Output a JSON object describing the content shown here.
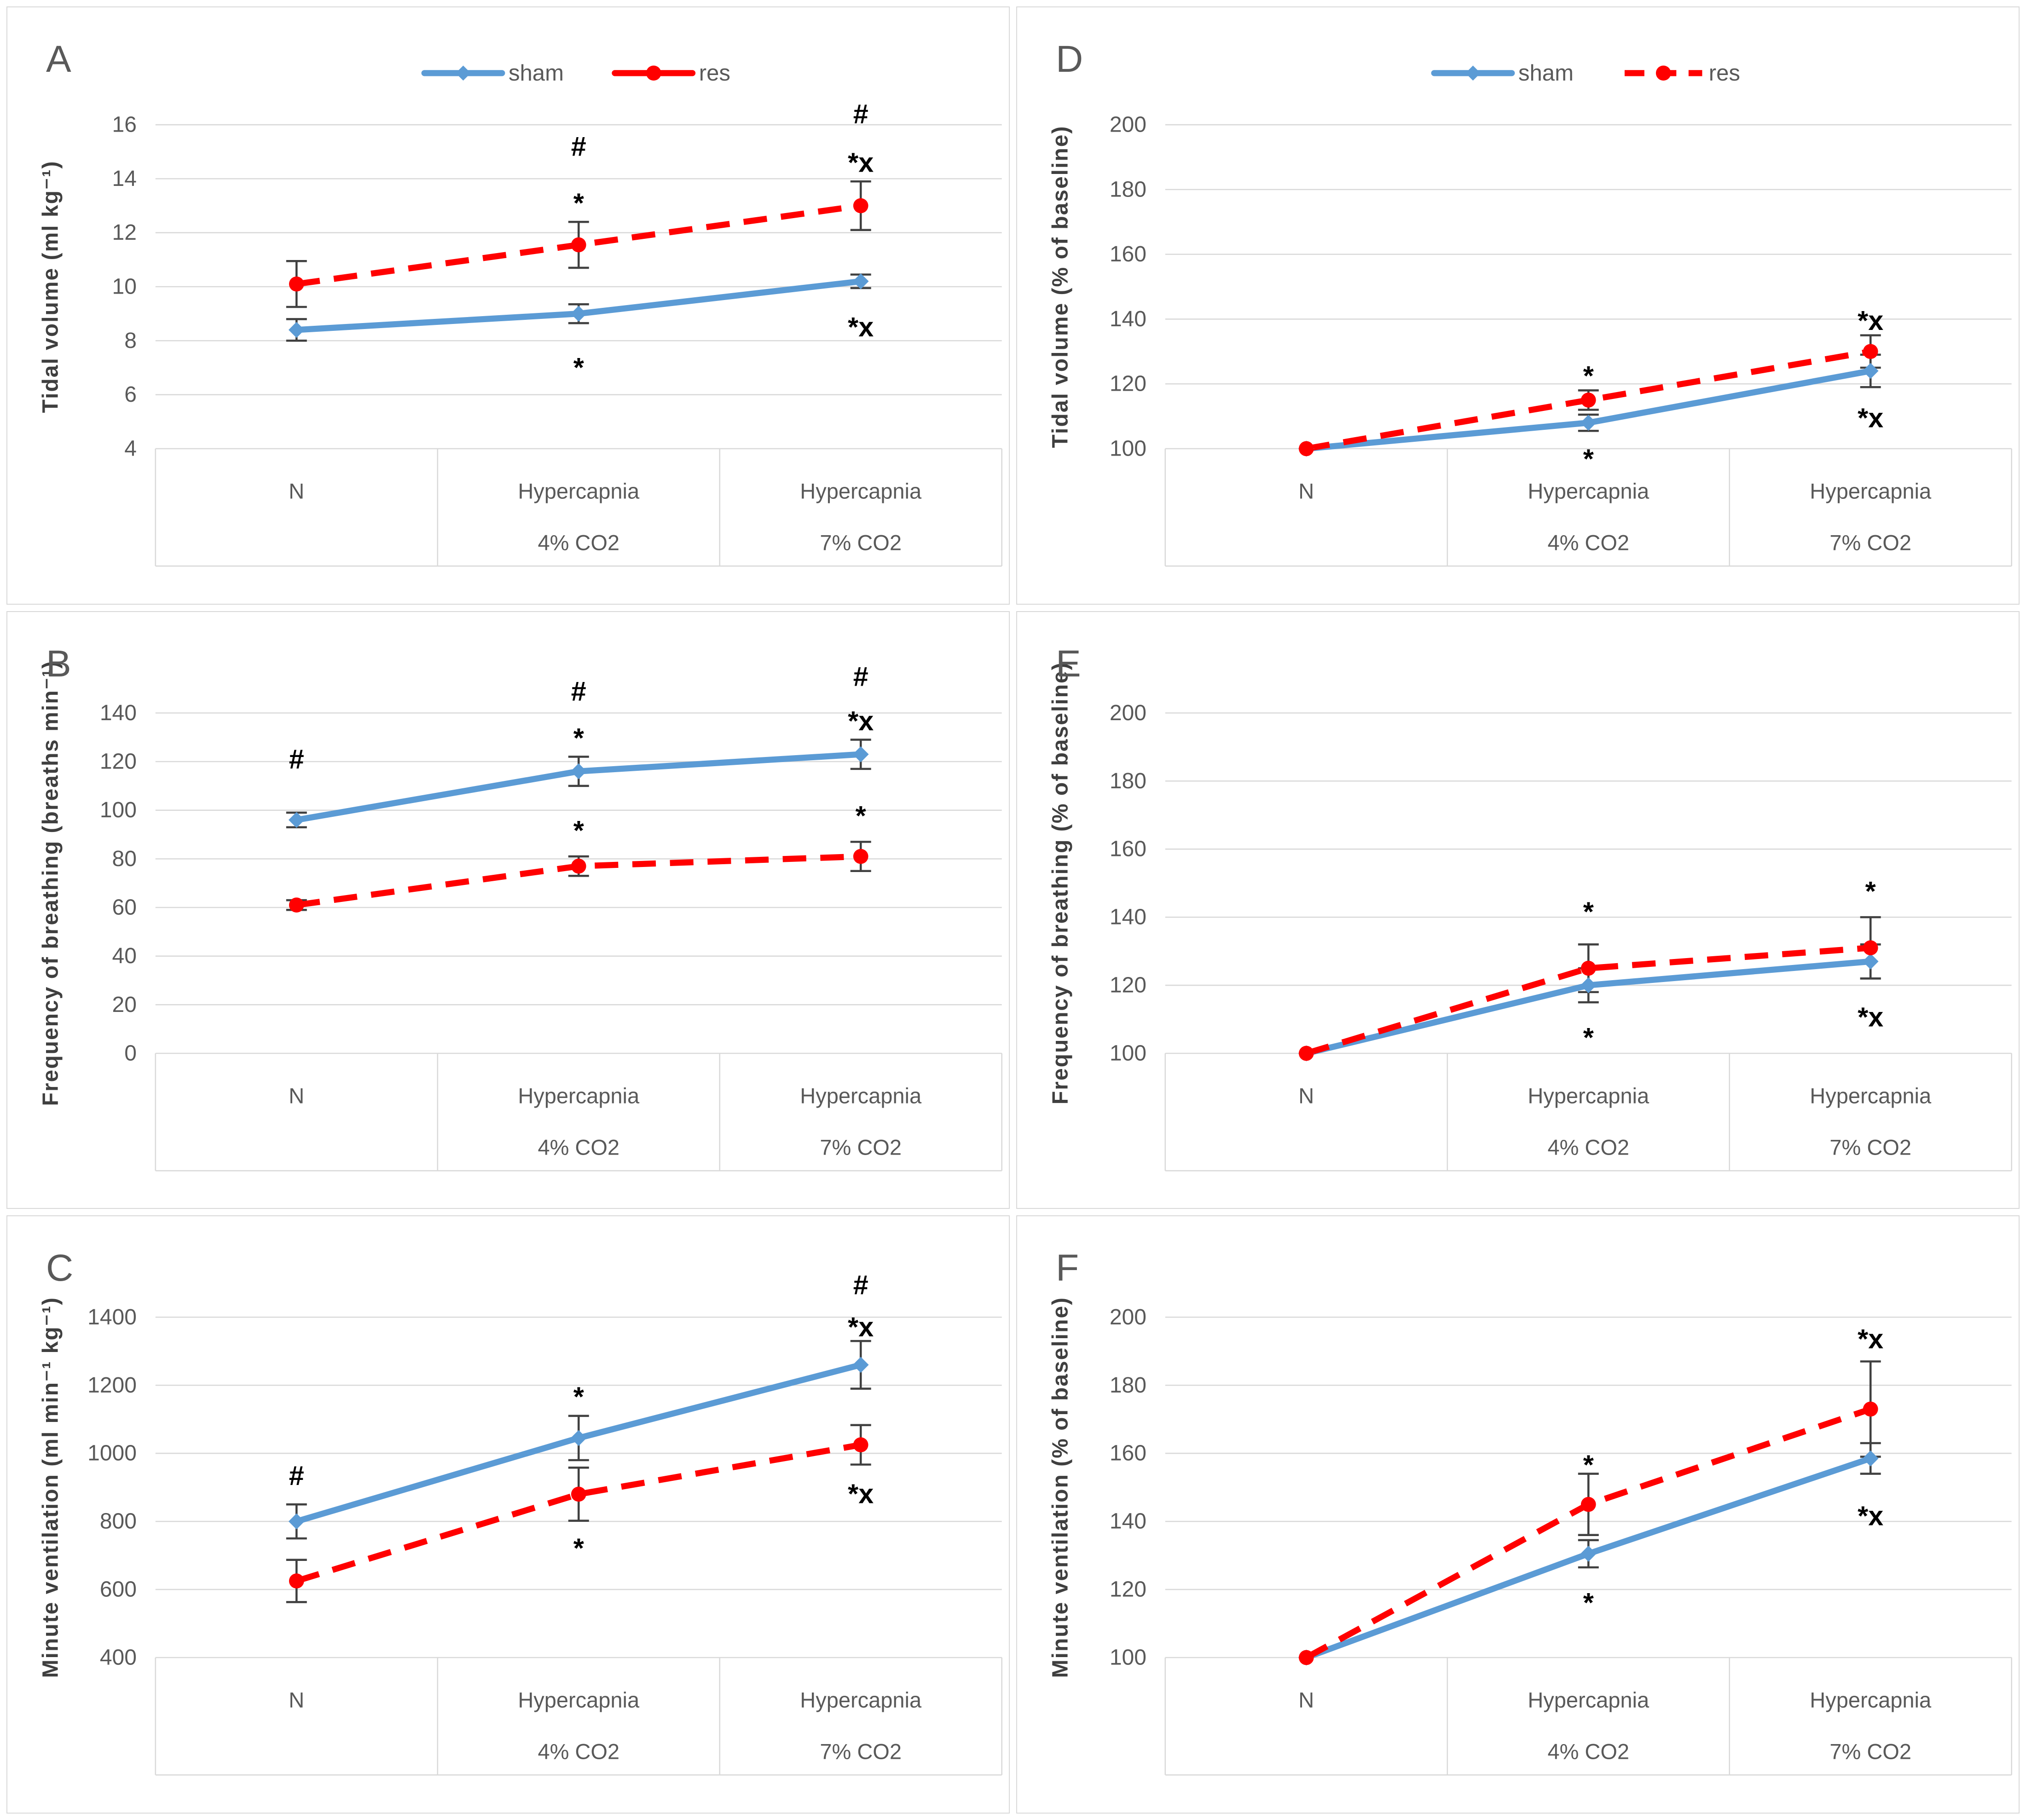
{
  "figure": {
    "legend": {
      "sham_label": "sham",
      "res_label": "res"
    },
    "colors": {
      "sham": "#5B9BD5",
      "res": "#FF0000",
      "error_bar": "#404040",
      "gridline": "#D9D9D9",
      "table_border": "#D9D9D9",
      "tick_text": "#595959",
      "axis_title_text": "#3F3F3F",
      "category_text": "#595959",
      "annotation_text": "#000000",
      "panel_letter_text": "#595959",
      "panel_border": "#D9D9D9"
    }
  },
  "chart_data": [
    {
      "panel": "A",
      "type": "line",
      "ylabel": "Tidal volume (ml kg⁻¹)",
      "ylim": [
        4,
        16
      ],
      "yticks": [
        4,
        6,
        8,
        10,
        12,
        14,
        16
      ],
      "grid": true,
      "legend": {
        "visible": true,
        "position": "top",
        "res_sample_dashed": false
      },
      "categories": [
        {
          "line1": "N",
          "line2": ""
        },
        {
          "line1": "Hypercapnia",
          "line2": "4% CO2"
        },
        {
          "line1": "Hypercapnia",
          "line2": "7% CO2"
        }
      ],
      "series": [
        {
          "name": "sham",
          "color": "#5B9BD5",
          "dash": false,
          "marker": "diamond",
          "values": [
            8.4,
            9.0,
            10.2
          ],
          "errors": [
            0.4,
            0.35,
            0.25
          ]
        },
        {
          "name": "res",
          "color": "#FF0000",
          "dash": true,
          "marker": "circle",
          "values": [
            10.1,
            11.55,
            13.0
          ],
          "errors": [
            0.85,
            0.85,
            0.9
          ]
        }
      ],
      "annotations": [
        {
          "series": "res",
          "x": 1,
          "text": "#",
          "y": 15.2
        },
        {
          "series": "res",
          "x": 1,
          "text": "*",
          "y": 13.4
        },
        {
          "series": "res",
          "x": 2,
          "text": "#",
          "y": 16.4
        },
        {
          "series": "res",
          "x": 2,
          "text": "*x",
          "y": 14.9
        },
        {
          "series": "sham",
          "x": 1,
          "text": "*",
          "y": 7.3
        },
        {
          "series": "sham",
          "x": 2,
          "text": "*x",
          "y": 8.8
        }
      ]
    },
    {
      "panel": "B",
      "type": "line",
      "ylabel": "Frequency of breathing (breaths min⁻¹)",
      "ylim": [
        0,
        140
      ],
      "yticks": [
        0,
        20,
        40,
        60,
        80,
        100,
        120,
        140
      ],
      "grid": true,
      "legend": {
        "visible": false
      },
      "categories": [
        {
          "line1": "N",
          "line2": ""
        },
        {
          "line1": "Hypercapnia",
          "line2": "4% CO2"
        },
        {
          "line1": "Hypercapnia",
          "line2": "7% CO2"
        }
      ],
      "series": [
        {
          "name": "sham",
          "color": "#5B9BD5",
          "dash": false,
          "marker": "diamond",
          "values": [
            96,
            116,
            123
          ],
          "errors": [
            3,
            6,
            6
          ]
        },
        {
          "name": "res",
          "color": "#FF0000",
          "dash": true,
          "marker": "circle",
          "values": [
            61,
            77,
            81
          ],
          "errors": [
            2,
            4,
            6
          ]
        }
      ],
      "annotations": [
        {
          "series": "sham",
          "x": 0,
          "text": "#",
          "y": 121
        },
        {
          "series": "sham",
          "x": 1,
          "text": "#",
          "y": 149
        },
        {
          "series": "sham",
          "x": 1,
          "text": "*",
          "y": 133
        },
        {
          "series": "sham",
          "x": 2,
          "text": "#",
          "y": 155
        },
        {
          "series": "sham",
          "x": 2,
          "text": "*x",
          "y": 140
        },
        {
          "series": "res",
          "x": 1,
          "text": "*",
          "y": 95
        },
        {
          "series": "res",
          "x": 2,
          "text": "*",
          "y": 101
        }
      ]
    },
    {
      "panel": "C",
      "type": "line",
      "ylabel": "Minute ventilation (ml min⁻¹ kg⁻¹)",
      "ylim": [
        400,
        1400
      ],
      "yticks": [
        400,
        600,
        800,
        1000,
        1200,
        1400
      ],
      "grid": true,
      "legend": {
        "visible": false
      },
      "categories": [
        {
          "line1": "N",
          "line2": ""
        },
        {
          "line1": "Hypercapnia",
          "line2": "4% CO2"
        },
        {
          "line1": "Hypercapnia",
          "line2": "7% CO2"
        }
      ],
      "series": [
        {
          "name": "sham",
          "color": "#5B9BD5",
          "dash": false,
          "marker": "diamond",
          "values": [
            800,
            1045,
            1260
          ],
          "errors": [
            50,
            65,
            70
          ]
        },
        {
          "name": "res",
          "color": "#FF0000",
          "dash": true,
          "marker": "circle",
          "values": [
            625,
            880,
            1025
          ],
          "errors": [
            62,
            78,
            58
          ]
        }
      ],
      "annotations": [
        {
          "series": "sham",
          "x": 0,
          "text": "#",
          "y": 935
        },
        {
          "series": "sham",
          "x": 1,
          "text": "*",
          "y": 1190
        },
        {
          "series": "sham",
          "x": 2,
          "text": "#",
          "y": 1495
        },
        {
          "series": "sham",
          "x": 2,
          "text": "*x",
          "y": 1395
        },
        {
          "series": "res",
          "x": 1,
          "text": "*",
          "y": 745
        },
        {
          "series": "res",
          "x": 2,
          "text": "*x",
          "y": 905
        }
      ]
    },
    {
      "panel": "D",
      "type": "line",
      "ylabel": "Tidal volume (% of baseline)",
      "ylim": [
        100,
        200
      ],
      "yticks": [
        100,
        120,
        140,
        160,
        180,
        200
      ],
      "grid": true,
      "legend": {
        "visible": true,
        "position": "top",
        "res_sample_dashed": true
      },
      "categories": [
        {
          "line1": "N",
          "line2": ""
        },
        {
          "line1": "Hypercapnia",
          "line2": "4% CO2"
        },
        {
          "line1": "Hypercapnia",
          "line2": "7% CO2"
        }
      ],
      "series": [
        {
          "name": "sham",
          "color": "#5B9BD5",
          "dash": false,
          "marker": "diamond",
          "values": [
            100,
            108,
            124
          ],
          "errors": [
            0,
            2.5,
            5
          ]
        },
        {
          "name": "res",
          "color": "#FF0000",
          "dash": true,
          "marker": "circle",
          "values": [
            100,
            115,
            130
          ],
          "errors": [
            0,
            3,
            5
          ]
        }
      ],
      "annotations": [
        {
          "series": "res",
          "x": 1,
          "text": "*",
          "y": 125
        },
        {
          "series": "sham",
          "x": 1,
          "text": "*",
          "y": 99.3
        },
        {
          "series": "res",
          "x": 2,
          "text": "*x",
          "y": 142
        },
        {
          "series": "sham",
          "x": 2,
          "text": "*x",
          "y": 112
        }
      ]
    },
    {
      "panel": "E",
      "type": "line",
      "ylabel": "Frequency of breathing (% of baseline)",
      "ylim": [
        100,
        200
      ],
      "yticks": [
        100,
        120,
        140,
        160,
        180,
        200
      ],
      "grid": true,
      "legend": {
        "visible": false
      },
      "categories": [
        {
          "line1": "N",
          "line2": ""
        },
        {
          "line1": "Hypercapnia",
          "line2": "4% CO2"
        },
        {
          "line1": "Hypercapnia",
          "line2": "7% CO2"
        }
      ],
      "series": [
        {
          "name": "sham",
          "color": "#5B9BD5",
          "dash": false,
          "marker": "diamond",
          "values": [
            100,
            120,
            127
          ],
          "errors": [
            0,
            5,
            5
          ]
        },
        {
          "name": "res",
          "color": "#FF0000",
          "dash": true,
          "marker": "circle",
          "values": [
            100,
            125,
            131
          ],
          "errors": [
            0,
            7,
            9
          ]
        }
      ],
      "annotations": [
        {
          "series": "res",
          "x": 1,
          "text": "*",
          "y": 144
        },
        {
          "series": "sham",
          "x": 1,
          "text": "*",
          "y": 107
        },
        {
          "series": "res",
          "x": 2,
          "text": "*",
          "y": 150
        },
        {
          "series": "sham",
          "x": 2,
          "text": "*x",
          "y": 113
        }
      ]
    },
    {
      "panel": "F",
      "type": "line",
      "ylabel": "Minute ventilation (% of baseline)",
      "ylim": [
        100,
        200
      ],
      "yticks": [
        100,
        120,
        140,
        160,
        180,
        200
      ],
      "grid": true,
      "legend": {
        "visible": false
      },
      "categories": [
        {
          "line1": "N",
          "line2": ""
        },
        {
          "line1": "Hypercapnia",
          "line2": "4% CO2"
        },
        {
          "line1": "Hypercapnia",
          "line2": "7% CO2"
        }
      ],
      "series": [
        {
          "name": "sham",
          "color": "#5B9BD5",
          "dash": false,
          "marker": "diamond",
          "values": [
            100,
            130.5,
            158.5
          ],
          "errors": [
            0,
            4,
            4.5
          ]
        },
        {
          "name": "res",
          "color": "#FF0000",
          "dash": true,
          "marker": "circle",
          "values": [
            100,
            145,
            173
          ],
          "errors": [
            0,
            9,
            14
          ]
        }
      ],
      "annotations": [
        {
          "series": "res",
          "x": 1,
          "text": "*",
          "y": 159
        },
        {
          "series": "sham",
          "x": 1,
          "text": "*",
          "y": 118.5
        },
        {
          "series": "res",
          "x": 2,
          "text": "*x",
          "y": 196
        },
        {
          "series": "sham",
          "x": 2,
          "text": "*x",
          "y": 144
        }
      ]
    }
  ]
}
